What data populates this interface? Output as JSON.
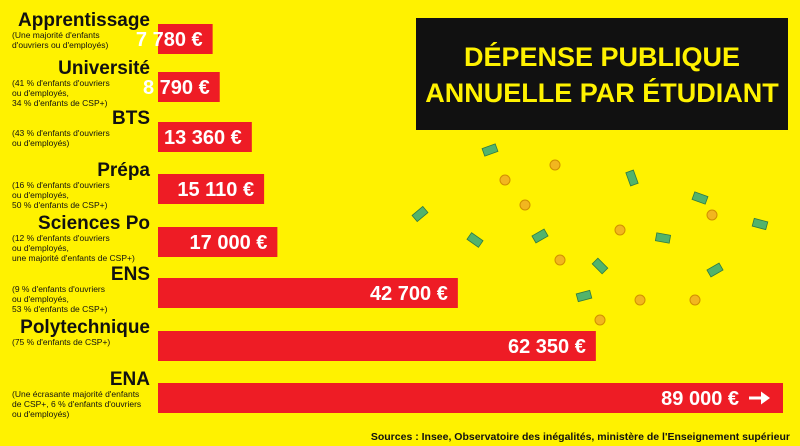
{
  "chart_data": {
    "type": "bar",
    "orientation": "horizontal",
    "title": [
      "DÉPENSE PUBLIQUE",
      "ANNUELLE PAR ÉTUDIANT"
    ],
    "categories": [
      "Apprentissage",
      "Université",
      "BTS",
      "Prépa",
      "Sciences Po",
      "ENS",
      "Polytechnique",
      "ENA"
    ],
    "notes": [
      [
        "(Une majorité d'enfants",
        "d'ouvriers ou d'employés)"
      ],
      [
        "(41 % d'enfants d'ouvriers",
        "ou d'employés,",
        "34 % d'enfants de CSP+)"
      ],
      [
        "(43 % d'enfants d'ouvriers",
        "ou d'employés)"
      ],
      [
        "(16 % d'enfants d'ouvriers",
        "ou d'employés,",
        "50 % d'enfants de CSP+)"
      ],
      [
        "(12 % d'enfants d'ouvriers",
        "ou d'employés,",
        "une majorité d'enfants de CSP+)"
      ],
      [
        "(9 % d'enfants d'ouvriers",
        "ou d'employés,",
        "53 % d'enfants de CSP+)"
      ],
      [
        "(75 % d'enfants de CSP+)"
      ],
      [
        "(Une écrasante majorité d'enfants",
        "de CSP+, 6 % d'enfants d'ouvriers",
        "ou d'employés)"
      ]
    ],
    "values": [
      7780,
      8790,
      13360,
      15110,
      17000,
      42700,
      62350,
      89000
    ],
    "value_labels": [
      "7 780 €",
      "8 790 €",
      "13 360 €",
      "15 110 €",
      "17 000 €",
      "42 700 €",
      "62 350 €",
      "89 000 €"
    ],
    "last_bar_arrow": true,
    "source": "Sources : Insee, Observatoire des inégalités, ministère de l'Enseignement supérieur",
    "colors": {
      "background": "#fff200",
      "bar": "#ee1c25",
      "title_box": "#111111",
      "title_text": "#fff200"
    }
  }
}
